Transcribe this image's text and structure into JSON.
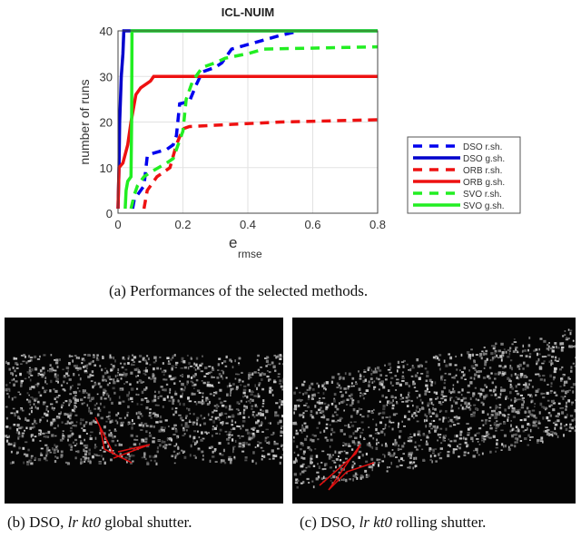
{
  "chart_data": {
    "type": "line",
    "title": "ICL-NUIM",
    "xlabel_main": "e",
    "xlabel_sub": "rmse",
    "ylabel": "number of runs",
    "xlim": [
      0,
      0.8
    ],
    "ylim": [
      0,
      40
    ],
    "xticks": [
      "0",
      "0.2",
      "0.4",
      "0.6",
      "0.8"
    ],
    "yticks": [
      "0",
      "10",
      "20",
      "30",
      "40"
    ],
    "grid": true,
    "legend_position": "right-outside",
    "series": [
      {
        "name": "DSO r.sh.",
        "color": "#0000ee",
        "dashed": true,
        "points": [
          [
            0.045,
            1
          ],
          [
            0.05,
            3
          ],
          [
            0.07,
            5
          ],
          [
            0.08,
            6
          ],
          [
            0.09,
            12.5
          ],
          [
            0.1,
            13
          ],
          [
            0.15,
            14
          ],
          [
            0.17,
            15
          ],
          [
            0.18,
            17
          ],
          [
            0.19,
            24
          ],
          [
            0.22,
            24.5
          ],
          [
            0.24,
            28
          ],
          [
            0.26,
            31
          ],
          [
            0.3,
            32
          ],
          [
            0.32,
            33
          ],
          [
            0.35,
            36
          ],
          [
            0.4,
            37
          ],
          [
            0.45,
            38
          ],
          [
            0.5,
            39
          ],
          [
            0.56,
            40
          ]
        ]
      },
      {
        "name": "DSO g.sh.",
        "color": "#0000cc",
        "dashed": false,
        "points": [
          [
            0,
            1
          ],
          [
            0.003,
            10
          ],
          [
            0.005,
            20
          ],
          [
            0.01,
            30
          ],
          [
            0.015,
            35
          ],
          [
            0.018,
            40
          ],
          [
            0.8,
            40
          ]
        ]
      },
      {
        "name": "ORB r.sh.",
        "color": "#ee1111",
        "dashed": true,
        "points": [
          [
            0.08,
            1
          ],
          [
            0.09,
            5
          ],
          [
            0.12,
            8
          ],
          [
            0.16,
            10
          ],
          [
            0.18,
            15
          ],
          [
            0.2,
            18.5
          ],
          [
            0.22,
            19
          ],
          [
            0.3,
            19.3
          ],
          [
            0.5,
            20
          ],
          [
            0.8,
            20.5
          ]
        ]
      },
      {
        "name": "ORB g.sh.",
        "color": "#ee1111",
        "dashed": false,
        "points": [
          [
            0,
            1
          ],
          [
            0.003,
            10
          ],
          [
            0.015,
            11
          ],
          [
            0.03,
            15
          ],
          [
            0.04,
            20
          ],
          [
            0.055,
            26
          ],
          [
            0.07,
            27.5
          ],
          [
            0.09,
            28.5
          ],
          [
            0.1,
            29
          ],
          [
            0.11,
            30
          ],
          [
            0.8,
            30
          ]
        ]
      },
      {
        "name": "SVO r.sh.",
        "color": "#22ee22",
        "dashed": true,
        "points": [
          [
            0.04,
            1
          ],
          [
            0.05,
            4
          ],
          [
            0.06,
            6
          ],
          [
            0.08,
            8
          ],
          [
            0.1,
            9
          ],
          [
            0.15,
            11
          ],
          [
            0.17,
            12
          ],
          [
            0.2,
            18
          ],
          [
            0.21,
            25
          ],
          [
            0.23,
            29
          ],
          [
            0.26,
            32
          ],
          [
            0.3,
            33
          ],
          [
            0.33,
            34
          ],
          [
            0.4,
            35
          ],
          [
            0.45,
            36
          ],
          [
            0.8,
            36.5
          ]
        ]
      },
      {
        "name": "SVO g.sh.",
        "color": "#22ee22",
        "dashed": false,
        "points": [
          [
            0.022,
            1
          ],
          [
            0.025,
            5
          ],
          [
            0.03,
            7
          ],
          [
            0.04,
            8
          ],
          [
            0.042,
            20
          ],
          [
            0.043,
            40
          ],
          [
            0.8,
            40
          ]
        ]
      }
    ]
  },
  "captions": {
    "a": "(a) Performances of the selected methods.",
    "b_prefix": "(b) DSO, ",
    "b_italic": "lr kt0",
    "b_suffix": " global shutter.",
    "c_prefix": "(c) DSO, ",
    "c_italic": "lr kt0",
    "c_suffix": " rolling shutter."
  }
}
